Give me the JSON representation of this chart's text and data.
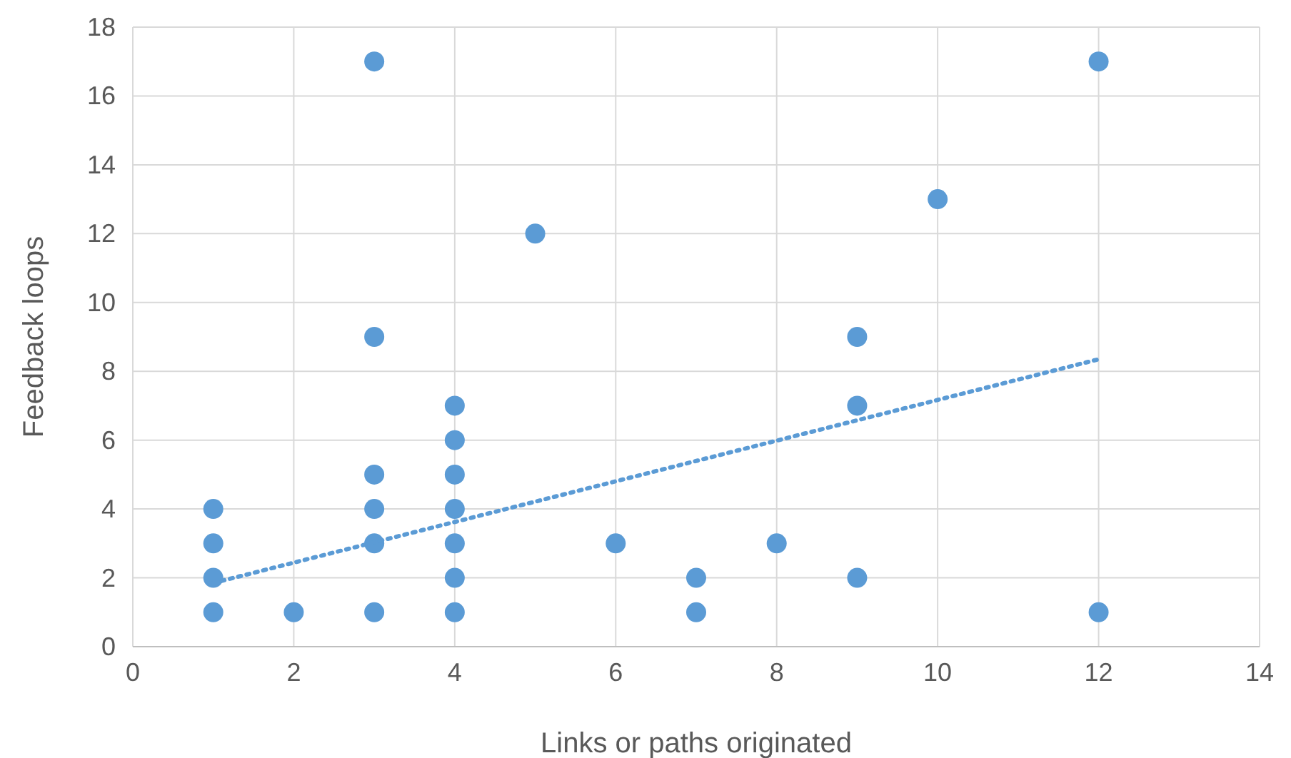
{
  "chart_data": {
    "type": "scatter",
    "xlabel": "Links or paths originated",
    "ylabel": "Feedback loops",
    "xlim": [
      0,
      14
    ],
    "xticks": [
      0,
      2,
      4,
      6,
      8,
      10,
      12,
      14
    ],
    "ylim": [
      0,
      18
    ],
    "yticks": [
      0,
      2,
      4,
      6,
      8,
      10,
      12,
      14,
      16,
      18
    ],
    "grid": true,
    "marker": "circle",
    "series": [
      {
        "color": "#5b9bd5",
        "x": [
          1,
          1,
          1,
          1,
          2,
          3,
          3,
          3,
          3,
          3,
          3,
          4,
          4,
          4,
          4,
          4,
          4,
          4,
          5,
          6,
          7,
          7,
          8,
          9,
          9,
          9,
          10,
          12,
          12
        ],
        "values": [
          4,
          3,
          2,
          1,
          1,
          17,
          9,
          5,
          4,
          3,
          1,
          7,
          6,
          5,
          4,
          3,
          2,
          1,
          12,
          3,
          2,
          1,
          3,
          9,
          7,
          2,
          13,
          17,
          1
        ]
      },
      {
        "type": "line",
        "color": "#5b9bd5",
        "line_style": "dotted",
        "marker": "none",
        "x": [
          1,
          12
        ],
        "values": [
          1.85,
          8.35
        ]
      }
    ]
  }
}
